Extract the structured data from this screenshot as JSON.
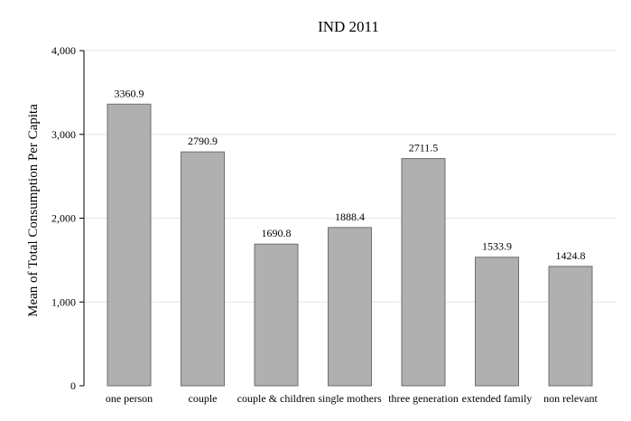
{
  "chart_data": {
    "type": "bar",
    "title": "IND 2011",
    "xlabel": "",
    "ylabel": "Mean of Total Consumption Per Capita",
    "categories": [
      "one person",
      "couple",
      "couple & children",
      "single mothers",
      "three generation",
      "extended family",
      "non relevant"
    ],
    "values": [
      3360.9,
      2790.9,
      1690.8,
      1888.4,
      2711.5,
      1533.9,
      1424.8
    ],
    "value_labels": [
      "3360.9",
      "2790.9",
      "1690.8",
      "1888.4",
      "2711.5",
      "1533.9",
      "1424.8"
    ],
    "ylim": [
      0,
      4000
    ],
    "yticks": [
      0,
      1000,
      2000,
      3000,
      4000
    ],
    "ytick_labels": [
      "0",
      "1,000",
      "2,000",
      "3,000",
      "4,000"
    ],
    "grid": true,
    "legend": "none",
    "colors": {
      "bar_fill": "#b0b0b0",
      "bar_stroke": "#6e6e6e",
      "grid": "#e6e6e6",
      "axis": "#000000"
    }
  }
}
